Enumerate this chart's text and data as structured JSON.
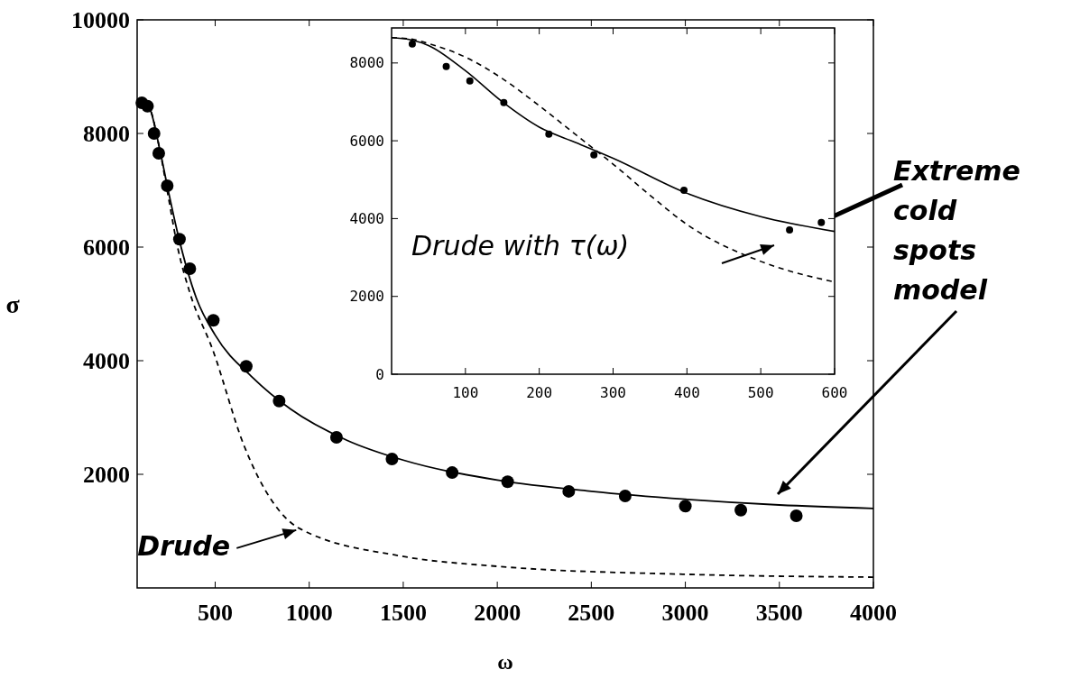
{
  "chart_data": [
    {
      "type": "line",
      "xlabel": "ω",
      "ylabel": "σ",
      "xlim": [
        85,
        4000
      ],
      "ylim": [
        0,
        10000
      ],
      "xticks": [
        500,
        1000,
        1500,
        2000,
        2500,
        3000,
        3500,
        4000
      ],
      "yticks": [
        2000,
        4000,
        6000,
        8000,
        10000
      ],
      "series": [
        {
          "color": "#000000",
          "line_style": "solid",
          "x": [
            85,
            150,
            200,
            250,
            300,
            400,
            500,
            700,
            900,
            1200,
            1500,
            2000,
            2500,
            3000,
            3500,
            4000
          ],
          "values": [
            8600,
            8450,
            7800,
            7000,
            6250,
            5100,
            4450,
            3700,
            3150,
            2600,
            2250,
            1900,
            1700,
            1560,
            1460,
            1400
          ]
        },
        {
          "color": "#000000",
          "line_style": "dashed",
          "x": [
            85,
            150,
            200,
            250,
            300,
            365,
            486,
            654,
            947,
            1490,
            2000,
            3000,
            4000
          ],
          "values": [
            8600,
            8450,
            7800,
            6900,
            6000,
            5200,
            4200,
            2500,
            1050,
            560,
            380,
            240,
            190
          ]
        },
        {
          "type": "scatter",
          "color": "#000000",
          "marker": "circle",
          "x": [
            110,
            140,
            175,
            200,
            245,
            310,
            365,
            490,
            665,
            840,
            1145,
            1440,
            1760,
            2055,
            2380,
            2680,
            3000,
            3295,
            3590
          ],
          "values": [
            8540,
            8480,
            8000,
            7650,
            7080,
            6140,
            5620,
            4710,
            3900,
            3290,
            2650,
            2270,
            2030,
            1870,
            1700,
            1620,
            1440,
            1370,
            1270
          ]
        }
      ],
      "annotations": [
        {
          "text": "Drude",
          "x": 950,
          "y": 1050
        },
        "Extreme cold spots model"
      ]
    },
    {
      "type": "line",
      "xlim": [
        0,
        600
      ],
      "ylim": [
        0,
        8900
      ],
      "xticks": [
        100,
        200,
        300,
        400,
        500,
        600
      ],
      "yticks": [
        0,
        2000,
        4000,
        6000,
        8000
      ],
      "series": [
        {
          "color": "#000000",
          "line_style": "solid",
          "x": [
            0,
            25,
            50,
            100,
            150,
            200,
            250,
            300,
            400,
            500,
            600
          ],
          "values": [
            8650,
            8600,
            8450,
            7800,
            7000,
            6350,
            5950,
            5550,
            4650,
            4050,
            3670
          ]
        },
        {
          "color": "#000000",
          "line_style": "dashed",
          "x": [
            0,
            25,
            50,
            100,
            150,
            200,
            250,
            300,
            350,
            400,
            500,
            600
          ],
          "values": [
            8650,
            8620,
            8500,
            8150,
            7600,
            6900,
            6150,
            5400,
            4600,
            3850,
            2900,
            2370
          ]
        },
        {
          "type": "scatter",
          "color": "#000000",
          "marker": "circle",
          "x": [
            28,
            74,
            106,
            152,
            213,
            274,
            396,
            539,
            582
          ],
          "values": [
            8490,
            7910,
            7540,
            6980,
            6170,
            5640,
            4730,
            3710,
            3900
          ]
        }
      ],
      "annotations": [
        "Drude with τ(ω)"
      ]
    }
  ]
}
